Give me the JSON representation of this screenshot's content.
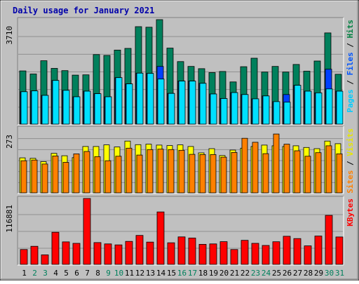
{
  "chart_data": {
    "type": "bar",
    "title": "Daily usage for January 2021",
    "categories": [
      "1",
      "2",
      "3",
      "4",
      "5",
      "6",
      "7",
      "8",
      "9",
      "10",
      "11",
      "12",
      "13",
      "14",
      "15",
      "16",
      "17",
      "18",
      "19",
      "20",
      "21",
      "22",
      "23",
      "24",
      "25",
      "26",
      "27",
      "28",
      "29",
      "30",
      "31"
    ],
    "weekend_days": [
      "2",
      "3",
      "9",
      "10",
      "16",
      "17",
      "23",
      "24",
      "30",
      "31"
    ],
    "highlighted_day": "14",
    "panels": [
      {
        "id": "hits_files_pages",
        "y_max_label": "3710",
        "ylim": [
          0,
          3710
        ],
        "axis_label_parts": [
          {
            "text": "Pages",
            "color": "#00ccff"
          },
          {
            "text": " / ",
            "color": "#000000"
          },
          {
            "text": "Files",
            "color": "#0055ff"
          },
          {
            "text": " / ",
            "color": "#000000"
          },
          {
            "text": "Hits",
            "color": "#008040"
          }
        ],
        "series": [
          {
            "name": "Hits",
            "color": "#00805c",
            "values": [
              1890,
              1780,
              2250,
              1980,
              1900,
              1740,
              1750,
              2470,
              2440,
              2630,
              2690,
              3460,
              3440,
              3710,
              2700,
              2220,
              2050,
              1970,
              1830,
              1870,
              1500,
              2040,
              2340,
              1850,
              2050,
              1850,
              2120,
              1880,
              2240,
              3240,
              1770
            ]
          },
          {
            "name": "Files",
            "color": "#0040ff",
            "values": [
              1150,
              1180,
              1020,
              1550,
              1200,
              970,
              1170,
              1080,
              970,
              1650,
              1430,
              1810,
              1800,
              2050,
              1090,
              1530,
              1530,
              1450,
              1070,
              910,
              1120,
              1050,
              900,
              1000,
              800,
              1050,
              1380,
              1170,
              1110,
              1950,
              1170
            ]
          },
          {
            "name": "Pages",
            "color": "#00e0ff",
            "values": [
              1150,
              1180,
              1020,
              1550,
              1200,
              970,
              1170,
              1080,
              970,
              1650,
              1430,
              1810,
              1800,
              1600,
              1090,
              1530,
              1530,
              1450,
              1070,
              910,
              1120,
              1050,
              900,
              1000,
              800,
              780,
              1380,
              1170,
              1110,
              1250,
              1170
            ]
          }
        ]
      },
      {
        "id": "visits_sites",
        "y_max_label": "273",
        "ylim": [
          0,
          273
        ],
        "axis_label_parts": [
          {
            "text": "Sites",
            "color": "#ff8000"
          },
          {
            "text": " / ",
            "color": "#000000"
          },
          {
            "text": "Visits",
            "color": "#e6e600"
          }
        ],
        "series": [
          {
            "name": "Visits",
            "color": "#ffff00",
            "values": [
              148,
              146,
              132,
              167,
              157,
              149,
              196,
              196,
              203,
              194,
              219,
              204,
              206,
              202,
              200,
              203,
              196,
              169,
              187,
              158,
              181,
              189,
              196,
              202,
              199,
              196,
              199,
              192,
              187,
              219,
              208
            ]
          },
          {
            "name": "Sites",
            "color": "#ff8000",
            "values": [
              136,
              139,
              122,
              156,
              129,
              165,
              175,
              153,
              136,
              155,
              189,
              160,
              183,
              185,
              183,
              180,
              163,
              162,
              162,
              151,
              171,
              231,
              214,
              166,
              249,
              206,
              178,
              155,
              170,
              199,
              165
            ]
          }
        ]
      },
      {
        "id": "kbytes",
        "y_max_label": "116881",
        "ylim": [
          0,
          116881
        ],
        "axis_label_parts": [
          {
            "text": "KBytes",
            "color": "#ff0000"
          }
        ],
        "series": [
          {
            "name": "KBytes",
            "color": "#ff0000",
            "values": [
              26300,
              32100,
              16900,
              57000,
              39900,
              37300,
              116881,
              38700,
              36300,
              34600,
              40800,
              51400,
              39500,
              93000,
              38300,
              48700,
              46800,
              35600,
              36300,
              40300,
              26400,
              42700,
              37300,
              33600,
              40200,
              49800,
              45800,
              32800,
              50200,
              86900,
              48600
            ]
          }
        ]
      }
    ]
  }
}
